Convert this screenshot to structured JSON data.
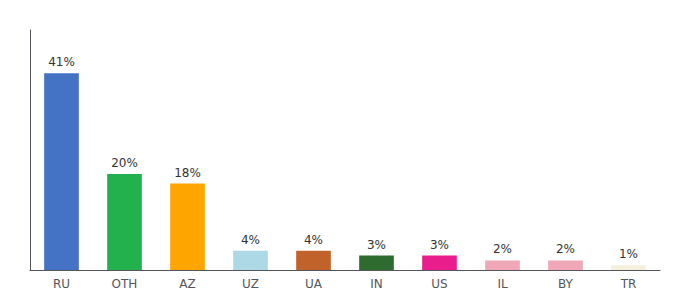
{
  "chart_data": {
    "type": "bar",
    "categories": [
      "RU",
      "OTH",
      "AZ",
      "UZ",
      "UA",
      "IN",
      "US",
      "IL",
      "BY",
      "TR"
    ],
    "values": [
      41,
      20,
      18,
      4,
      4,
      3,
      3,
      2,
      2,
      1
    ],
    "value_labels": [
      "41%",
      "20%",
      "18%",
      "4%",
      "4%",
      "3%",
      "3%",
      "2%",
      "2%",
      "1%"
    ],
    "colors": [
      "#4472c4",
      "#22b14c",
      "#ffa500",
      "#add8e6",
      "#c0622a",
      "#2e6b2e",
      "#e91e8c",
      "#f0a8b8",
      "#f0a8b8",
      "#f5f0dc"
    ],
    "ylim": [
      0,
      50
    ],
    "grid": false,
    "data_labels": true,
    "tick_labels": "x"
  }
}
